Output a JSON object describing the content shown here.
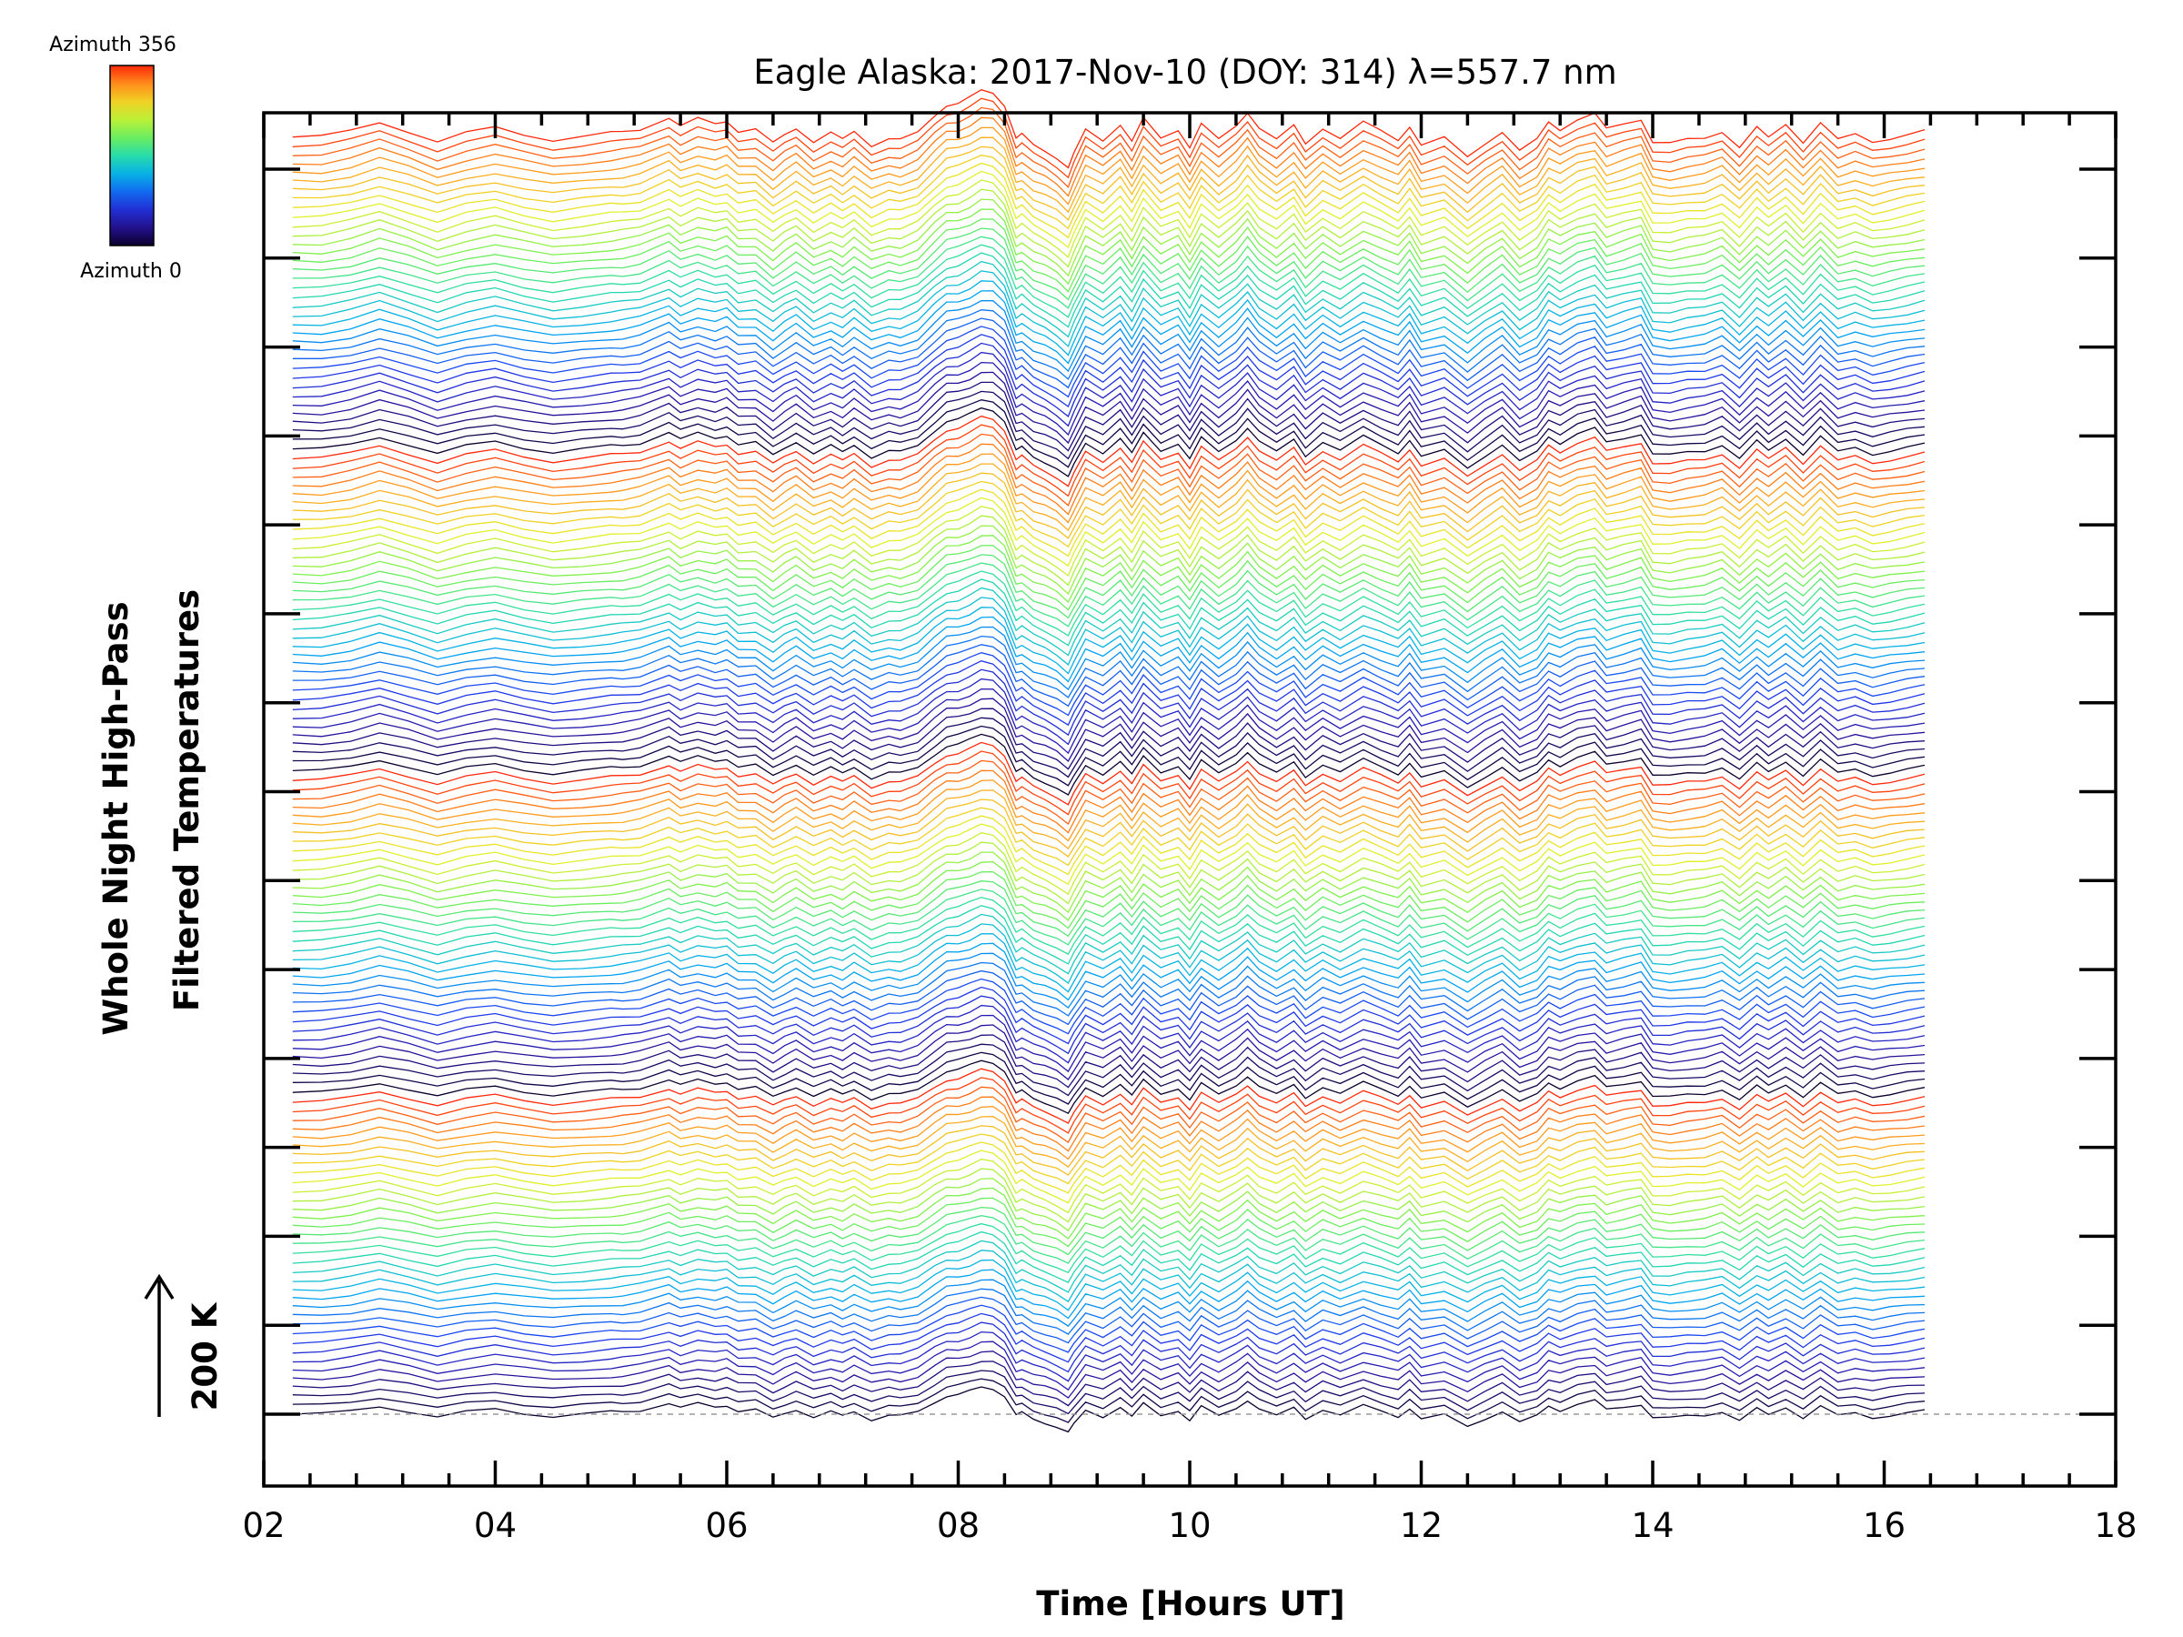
{
  "chart_data": {
    "type": "line",
    "title": "Eagle Alaska: 2017-Nov-10 (DOY: 314) λ=557.7 nm",
    "xlabel": "Time [Hours UT]",
    "ylabel_lines": [
      "Whole Night High-Pass",
      "Filtered Temperatures"
    ],
    "xlim": [
      2,
      18
    ],
    "x_ticks": [
      "02",
      "04",
      "06",
      "08",
      "10",
      "12",
      "14",
      "16",
      "18"
    ],
    "x_minor_per_major": 4,
    "y_major_ticks": 15,
    "scale_bar": {
      "label": "200 K",
      "value": 200
    },
    "colorbar": {
      "max_label": "Azimuth 356",
      "min_label": "Azimuth 0",
      "colormap": "rainbow",
      "min": 0,
      "max": 356
    },
    "trace_count": 144,
    "trace_x_range": [
      2.25,
      16.35
    ],
    "baseline_dashed": true,
    "representative_profile": {
      "x": [
        2.25,
        2.5,
        2.75,
        3.0,
        3.25,
        3.5,
        3.75,
        4.0,
        4.25,
        4.5,
        4.75,
        5.0,
        5.1,
        5.25,
        5.5,
        5.6,
        5.75,
        5.9,
        6.0,
        6.1,
        6.25,
        6.4,
        6.5,
        6.6,
        6.75,
        6.9,
        7.0,
        7.1,
        7.25,
        7.4,
        7.5,
        7.65,
        7.8,
        7.9,
        8.0,
        8.1,
        8.2,
        8.3,
        8.4,
        8.5,
        8.55,
        8.65,
        8.75,
        8.85,
        8.95,
        9.0,
        9.1,
        9.25,
        9.4,
        9.5,
        9.6,
        9.75,
        9.9,
        10.0,
        10.1,
        10.25,
        10.4,
        10.5,
        10.6,
        10.75,
        10.9,
        11.0,
        11.15,
        11.3,
        11.5,
        11.65,
        11.8,
        11.9,
        12.0,
        12.2,
        12.4,
        12.55,
        12.7,
        12.85,
        13.0,
        13.1,
        13.2,
        13.35,
        13.5,
        13.6,
        13.75,
        13.9,
        14.0,
        14.15,
        14.3,
        14.45,
        14.6,
        14.75,
        14.9,
        15.0,
        15.15,
        15.3,
        15.45,
        15.6,
        15.75,
        15.9,
        16.05,
        16.2,
        16.35
      ],
      "y": [
        0,
        0,
        15,
        40,
        15,
        -15,
        10,
        25,
        5,
        -10,
        0,
        10,
        12,
        20,
        55,
        30,
        50,
        35,
        45,
        15,
        20,
        -20,
        5,
        25,
        -15,
        10,
        -10,
        15,
        -25,
        -5,
        -10,
        10,
        60,
        90,
        95,
        110,
        130,
        125,
        90,
        -5,
        5,
        -25,
        -40,
        -60,
        -90,
        -50,
        20,
        -10,
        35,
        -15,
        50,
        -5,
        20,
        -30,
        35,
        -10,
        30,
        70,
        25,
        -10,
        30,
        -20,
        25,
        -5,
        40,
        15,
        -10,
        30,
        -25,
        -5,
        -60,
        -20,
        15,
        -40,
        -10,
        40,
        20,
        50,
        65,
        20,
        35,
        50,
        -15,
        -20,
        -10,
        -5,
        15,
        -30,
        25,
        -5,
        35,
        -15,
        40,
        -10,
        5,
        -15,
        -5,
        5,
        15
      ]
    },
    "trace_spacing_K": 27,
    "trace_amplitude_scale_factors": [
      1.0,
      1.7
    ]
  }
}
